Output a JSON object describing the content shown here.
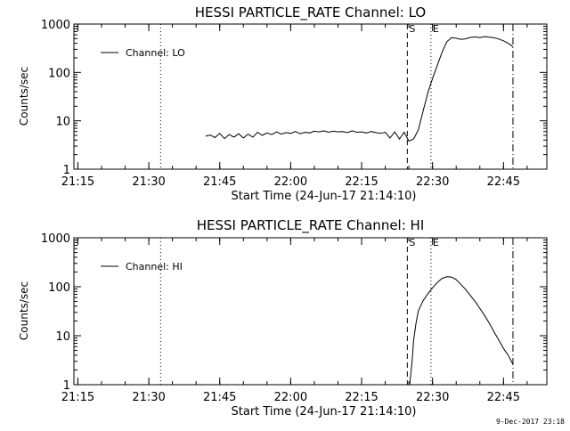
{
  "footer": "9-Dec-2017 23:18",
  "chart_data": [
    {
      "type": "line",
      "title": "HESSI PARTICLE_RATE Channel: LO",
      "xlabel": "Start Time (24-Jun-17 21:14:10)",
      "ylabel": "Counts/sec",
      "yscale": "log",
      "ylim": [
        1,
        1000
      ],
      "ytick_labels": [
        "1",
        "10",
        "100",
        "1000"
      ],
      "x_ticks": [
        "21:15",
        "21:30",
        "21:45",
        "22:00",
        "22:15",
        "22:30",
        "22:45"
      ],
      "xlim": [
        "21:14:10",
        "22:54:10"
      ],
      "grid": false,
      "legend": {
        "position": "top-left",
        "entries": [
          "Channel: LO"
        ]
      },
      "markers": [
        {
          "time": "21:32:30",
          "style": "dotted",
          "label": ""
        },
        {
          "time": "22:24:40",
          "style": "dashed",
          "label": "S"
        },
        {
          "time": "22:29:40",
          "style": "dotted",
          "label": "E"
        },
        {
          "time": "22:47:00",
          "style": "dash-dot",
          "label": ""
        }
      ],
      "series": [
        {
          "name": "Channel: LO",
          "x": [
            "21:42:00",
            "21:43:00",
            "21:44:00",
            "21:45:00",
            "21:46:00",
            "21:47:00",
            "21:48:00",
            "21:49:00",
            "21:50:00",
            "21:51:00",
            "21:52:00",
            "21:53:00",
            "21:54:00",
            "21:55:00",
            "21:56:00",
            "21:57:00",
            "21:58:00",
            "21:59:00",
            "22:00:00",
            "22:01:00",
            "22:02:00",
            "22:03:00",
            "22:04:00",
            "22:05:00",
            "22:06:00",
            "22:07:00",
            "22:08:00",
            "22:09:00",
            "22:10:00",
            "22:11:00",
            "22:12:00",
            "22:13:00",
            "22:14:00",
            "22:15:00",
            "22:16:00",
            "22:17:00",
            "22:18:00",
            "22:19:00",
            "22:20:00",
            "22:21:00",
            "22:22:00",
            "22:23:00",
            "22:24:00",
            "22:25:00",
            "22:26:00",
            "22:27:00",
            "22:28:00",
            "22:29:00",
            "22:30:00",
            "22:31:00",
            "22:32:00",
            "22:33:00",
            "22:34:00",
            "22:35:00",
            "22:36:00",
            "22:37:00",
            "22:38:00",
            "22:39:00",
            "22:40:00",
            "22:41:00",
            "22:42:00",
            "22:43:00",
            "22:44:00",
            "22:45:00",
            "22:46:00",
            "22:47:00"
          ],
          "y": [
            4.8,
            5.1,
            4.5,
            5.5,
            4.3,
            5.2,
            4.6,
            5.4,
            4.4,
            5.3,
            4.6,
            5.8,
            5.0,
            5.6,
            5.2,
            5.9,
            5.3,
            5.7,
            5.5,
            6.0,
            5.4,
            5.8,
            5.6,
            6.1,
            5.9,
            6.2,
            5.8,
            6.1,
            5.9,
            6.0,
            5.7,
            6.2,
            5.8,
            5.9,
            5.6,
            6.0,
            5.7,
            5.5,
            5.8,
            4.4,
            5.9,
            4.2,
            5.8,
            3.8,
            4.2,
            6.5,
            16,
            38,
            75,
            140,
            260,
            430,
            520,
            510,
            480,
            495,
            530,
            540,
            525,
            550,
            535,
            520,
            490,
            450,
            400,
            340
          ]
        }
      ]
    },
    {
      "type": "line",
      "title": "HESSI PARTICLE_RATE Channel: HI",
      "xlabel": "Start Time (24-Jun-17 21:14:10)",
      "ylabel": "Counts/sec",
      "yscale": "log",
      "ylim": [
        1,
        1000
      ],
      "ytick_labels": [
        "1",
        "10",
        "100",
        "1000"
      ],
      "x_ticks": [
        "21:15",
        "21:30",
        "21:45",
        "22:00",
        "22:15",
        "22:30",
        "22:45"
      ],
      "xlim": [
        "21:14:10",
        "22:54:10"
      ],
      "grid": false,
      "legend": {
        "position": "top-left",
        "entries": [
          "Channel: HI"
        ]
      },
      "markers": [
        {
          "time": "21:32:30",
          "style": "dotted",
          "label": ""
        },
        {
          "time": "22:24:40",
          "style": "dashed",
          "label": "S"
        },
        {
          "time": "22:29:40",
          "style": "dotted",
          "label": "E"
        },
        {
          "time": "22:47:00",
          "style": "dash-dot",
          "label": ""
        }
      ],
      "series": [
        {
          "name": "Channel: HI",
          "x": [
            "22:25:10",
            "22:25:40",
            "22:26:00",
            "22:26:30",
            "22:27:00",
            "22:28:00",
            "22:29:00",
            "22:30:00",
            "22:31:00",
            "22:32:00",
            "22:33:00",
            "22:34:00",
            "22:35:00",
            "22:36:00",
            "22:37:00",
            "22:38:00",
            "22:39:00",
            "22:40:00",
            "22:41:00",
            "22:42:00",
            "22:43:00",
            "22:44:00",
            "22:45:00",
            "22:46:00",
            "22:47:00"
          ],
          "y": [
            1.0,
            3.0,
            8.0,
            18,
            32,
            52,
            72,
            95,
            122,
            148,
            160,
            158,
            140,
            112,
            88,
            66,
            50,
            36,
            26,
            18,
            12,
            8.2,
            5.5,
            4.0,
            2.6
          ]
        }
      ]
    }
  ]
}
